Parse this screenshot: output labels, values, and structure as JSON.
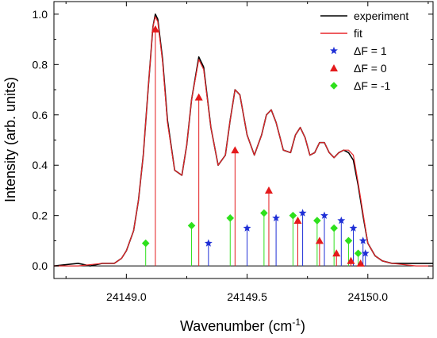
{
  "chart_data": {
    "type": "line",
    "xlabel": "Wavenumber (cm",
    "xlabel_sup": "-1",
    "xlabel_close": ")",
    "ylabel": "Intensity (arb. units)",
    "xlim": [
      24148.7,
      24150.27
    ],
    "ylim": [
      -0.05,
      1.05
    ],
    "x_ticks": [
      24149.0,
      24149.5,
      24150.0
    ],
    "x_tick_labels": [
      "24149.0",
      "24149.5",
      "24150.0"
    ],
    "y_ticks": [
      0.0,
      0.2,
      0.4,
      0.6,
      0.8,
      1.0
    ],
    "y_tick_labels": [
      "0.0",
      "0.2",
      "0.4",
      "0.6",
      "0.8",
      "1.0"
    ],
    "grid": false,
    "legend_position": "top-right",
    "series": [
      {
        "name": "experiment",
        "kind": "line",
        "color": "#000000",
        "x": [
          24148.7,
          24148.8,
          24148.85,
          24148.9,
          24148.95,
          24148.98,
          24149.0,
          24149.03,
          24149.05,
          24149.07,
          24149.09,
          24149.11,
          24149.12,
          24149.13,
          24149.15,
          24149.17,
          24149.2,
          24149.23,
          24149.25,
          24149.27,
          24149.3,
          24149.32,
          24149.35,
          24149.38,
          24149.41,
          24149.43,
          24149.45,
          24149.47,
          24149.5,
          24149.53,
          24149.56,
          24149.58,
          24149.6,
          24149.62,
          24149.65,
          24149.68,
          24149.7,
          24149.72,
          24149.74,
          24149.76,
          24149.78,
          24149.8,
          24149.82,
          24149.84,
          24149.86,
          24149.88,
          24149.9,
          24149.92,
          24149.94,
          24149.96,
          24149.98,
          24150.0,
          24150.03,
          24150.06,
          24150.1,
          24150.15,
          24150.2,
          24150.27
        ],
        "y": [
          0.0,
          0.01,
          0.0,
          0.01,
          0.01,
          0.03,
          0.06,
          0.14,
          0.26,
          0.44,
          0.7,
          0.95,
          1.0,
          0.98,
          0.82,
          0.58,
          0.38,
          0.36,
          0.48,
          0.66,
          0.83,
          0.79,
          0.55,
          0.4,
          0.44,
          0.58,
          0.7,
          0.68,
          0.52,
          0.44,
          0.52,
          0.6,
          0.62,
          0.57,
          0.46,
          0.45,
          0.52,
          0.55,
          0.51,
          0.44,
          0.45,
          0.49,
          0.49,
          0.45,
          0.43,
          0.45,
          0.46,
          0.45,
          0.42,
          0.32,
          0.2,
          0.09,
          0.04,
          0.02,
          0.01,
          0.01,
          0.01,
          0.01
        ]
      },
      {
        "name": "fit",
        "kind": "line",
        "color": "#e8272a",
        "x": [
          24148.7,
          24148.8,
          24148.9,
          24148.95,
          24148.98,
          24149.0,
          24149.03,
          24149.05,
          24149.07,
          24149.09,
          24149.11,
          24149.12,
          24149.13,
          24149.15,
          24149.17,
          24149.2,
          24149.23,
          24149.25,
          24149.27,
          24149.3,
          24149.32,
          24149.35,
          24149.38,
          24149.41,
          24149.43,
          24149.45,
          24149.47,
          24149.5,
          24149.53,
          24149.56,
          24149.58,
          24149.6,
          24149.62,
          24149.65,
          24149.68,
          24149.7,
          24149.72,
          24149.74,
          24149.76,
          24149.78,
          24149.8,
          24149.82,
          24149.84,
          24149.86,
          24149.88,
          24149.9,
          24149.92,
          24149.94,
          24149.96,
          24149.98,
          24150.0,
          24150.03,
          24150.06,
          24150.1,
          24150.2,
          24150.27
        ],
        "y": [
          0.0,
          0.0,
          0.01,
          0.01,
          0.03,
          0.06,
          0.14,
          0.26,
          0.44,
          0.7,
          0.95,
          0.99,
          0.97,
          0.81,
          0.57,
          0.38,
          0.36,
          0.48,
          0.66,
          0.82,
          0.78,
          0.55,
          0.4,
          0.44,
          0.58,
          0.7,
          0.68,
          0.52,
          0.44,
          0.52,
          0.6,
          0.62,
          0.57,
          0.46,
          0.45,
          0.52,
          0.55,
          0.51,
          0.44,
          0.45,
          0.49,
          0.49,
          0.45,
          0.43,
          0.45,
          0.46,
          0.46,
          0.44,
          0.33,
          0.21,
          0.09,
          0.04,
          0.02,
          0.01,
          0.0,
          0.0
        ]
      },
      {
        "name": "ΔF = 1",
        "kind": "stem",
        "marker": "star",
        "color": "#1f2fd6",
        "x": [
          24149.34,
          24149.5,
          24149.62,
          24149.73,
          24149.82,
          24149.89,
          24149.94,
          24149.98,
          24149.99
        ],
        "y": [
          0.09,
          0.15,
          0.19,
          0.21,
          0.2,
          0.18,
          0.15,
          0.1,
          0.05
        ]
      },
      {
        "name": "ΔF = 0",
        "kind": "stem",
        "marker": "triangle",
        "color": "#e41a1c",
        "x": [
          24149.12,
          24149.3,
          24149.45,
          24149.59,
          24149.71,
          24149.8,
          24149.87,
          24149.93,
          24149.97
        ],
        "y": [
          0.94,
          0.67,
          0.46,
          0.3,
          0.18,
          0.1,
          0.05,
          0.02,
          0.01
        ]
      },
      {
        "name": "ΔF = -1",
        "kind": "stem",
        "marker": "diamond",
        "color": "#2ee01c",
        "x": [
          24149.08,
          24149.27,
          24149.43,
          24149.57,
          24149.69,
          24149.79,
          24149.86,
          24149.92,
          24149.96
        ],
        "y": [
          0.09,
          0.16,
          0.19,
          0.21,
          0.2,
          0.18,
          0.15,
          0.1,
          0.05
        ]
      }
    ]
  }
}
